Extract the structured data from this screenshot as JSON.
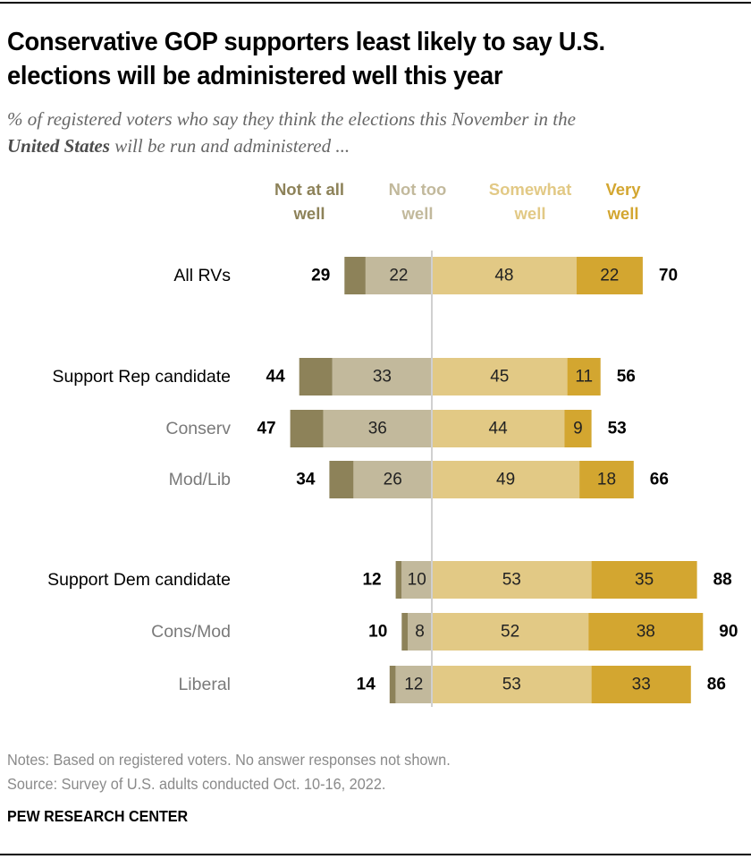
{
  "title": "Conservative GOP supporters least likely to say U.S. elections will be administered well this year",
  "subtitle": {
    "line1": "% of registered voters who say they think the elections this November in the",
    "bold": "United States",
    "line2_rest": " will be run and administered ..."
  },
  "notes": "Notes: Based on registered voters. No answer responses not shown.",
  "source": "Source: Survey of U.S. adults conducted Oct. 10-16, 2022.",
  "brand": "PEW RESEARCH CENTER",
  "chart_data": {
    "type": "bar",
    "orientation": "horizontal-diverging-stacked",
    "title": "Conservative GOP supporters least likely to say U.S. elections will be administered well this year",
    "xlabel": "",
    "ylabel": "",
    "colors": {
      "not_at_all": "#8d8259",
      "not_too": "#c2b99c",
      "somewhat": "#e2c985",
      "very": "#d3a630",
      "divider": "#d0d0d0"
    },
    "legend": [
      {
        "key": "not_at_all",
        "line1": "Not at all",
        "line2": "well",
        "color": "#8d8259"
      },
      {
        "key": "not_too",
        "line1": "Not too",
        "line2": "well",
        "color": "#c2b99c"
      },
      {
        "key": "somewhat",
        "line1": "Somewhat",
        "line2": "well",
        "color": "#e2c985"
      },
      {
        "key": "very",
        "line1": "Very",
        "line2": "well",
        "color": "#d3a630"
      }
    ],
    "legend_placement": "top",
    "categories": [
      "All RVs",
      "Support Rep candidate",
      "Conserv",
      "Mod/Lib",
      "Support Dem candidate",
      "Cons/Mod",
      "Liberal"
    ],
    "category_style": [
      "main",
      "main",
      "sub",
      "sub",
      "main",
      "sub",
      "sub"
    ],
    "series": [
      {
        "name": "Not at all well",
        "values": [
          7,
          11,
          11,
          8,
          2,
          2,
          2
        ]
      },
      {
        "name": "Not too well",
        "values": [
          22,
          33,
          36,
          26,
          10,
          8,
          12
        ]
      },
      {
        "name": "Somewhat well",
        "values": [
          48,
          45,
          44,
          49,
          53,
          52,
          53
        ]
      },
      {
        "name": "Very well",
        "values": [
          22,
          11,
          9,
          18,
          35,
          38,
          33
        ]
      }
    ],
    "segment_labels": {
      "not_too": [
        "22",
        "33",
        "36",
        "26",
        "10",
        "8",
        "12"
      ],
      "somewhat": [
        "48",
        "45",
        "44",
        "49",
        "53",
        "52",
        "53"
      ],
      "very": [
        "22",
        "11",
        "9",
        "18",
        "35",
        "38",
        "33"
      ]
    },
    "net_negative": [
      29,
      44,
      47,
      34,
      12,
      10,
      14
    ],
    "net_positive": [
      70,
      56,
      53,
      66,
      88,
      90,
      86
    ]
  }
}
